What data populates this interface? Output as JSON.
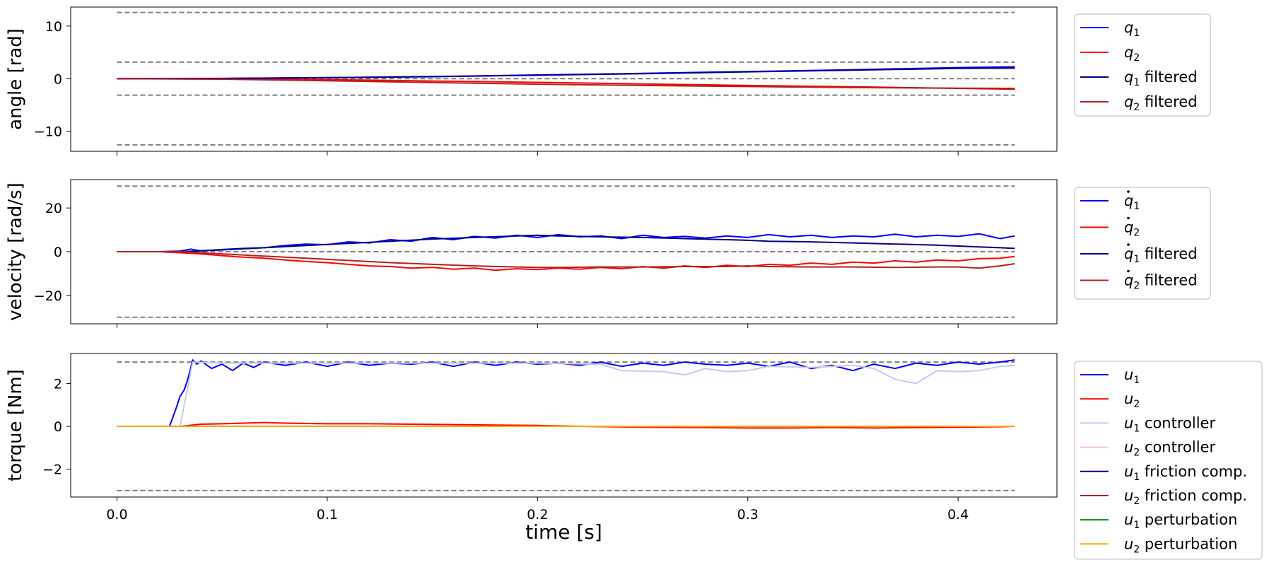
{
  "chart_data": [
    {
      "type": "line",
      "ylabel": "angle [rad]",
      "xlabel": "",
      "xlim": [
        -0.022,
        0.447
      ],
      "ylim": [
        -13.8,
        13.6
      ],
      "yticks": [
        10,
        0,
        -10
      ],
      "ytick_labels": [
        "10",
        "0",
        "−10"
      ],
      "xticks": [
        0.0,
        0.1,
        0.2,
        0.3,
        0.4
      ],
      "xtick_labels": [],
      "limits": [
        12.57,
        3.14,
        0,
        -3.14,
        -12.57
      ],
      "legend": "outside-right",
      "series": [
        {
          "name": "q",
          "sub": "1",
          "suffix": "",
          "dot": false,
          "color": "#0000ff",
          "width": 2,
          "x": [
            0,
            0.05,
            0.1,
            0.15,
            0.2,
            0.25,
            0.3,
            0.35,
            0.4,
            0.427
          ],
          "y": [
            0,
            0.05,
            0.2,
            0.4,
            0.7,
            1.0,
            1.35,
            1.7,
            2.1,
            2.25
          ]
        },
        {
          "name": "q",
          "sub": "2",
          "suffix": "",
          "dot": false,
          "color": "#ff0000",
          "width": 2,
          "x": [
            0,
            0.05,
            0.1,
            0.15,
            0.2,
            0.25,
            0.3,
            0.35,
            0.4,
            0.427
          ],
          "y": [
            0,
            -0.05,
            -0.2,
            -0.45,
            -0.7,
            -1.0,
            -1.3,
            -1.55,
            -1.85,
            -2.0
          ]
        },
        {
          "name": "q",
          "sub": "1",
          "suffix": " filtered",
          "dot": false,
          "color": "#00008b",
          "width": 2,
          "x": [
            0,
            0.05,
            0.1,
            0.15,
            0.2,
            0.25,
            0.3,
            0.35,
            0.4,
            0.427
          ],
          "y": [
            0,
            0.04,
            0.18,
            0.37,
            0.65,
            0.95,
            1.3,
            1.6,
            1.95,
            2.0
          ]
        },
        {
          "name": "q",
          "sub": "2",
          "suffix": " filtered",
          "dot": false,
          "color": "#b22222",
          "width": 2,
          "x": [
            0,
            0.05,
            0.1,
            0.15,
            0.2,
            0.25,
            0.3,
            0.35,
            0.4,
            0.427
          ],
          "y": [
            0,
            -0.1,
            -0.4,
            -0.75,
            -1.05,
            -1.3,
            -1.5,
            -1.7,
            -1.8,
            -1.85
          ]
        }
      ]
    },
    {
      "type": "line",
      "ylabel": "velocity [rad/s]",
      "xlabel": "",
      "xlim": [
        -0.022,
        0.447
      ],
      "ylim": [
        -33,
        33
      ],
      "yticks": [
        20,
        0,
        -20
      ],
      "ytick_labels": [
        "20",
        "0",
        "−20"
      ],
      "xticks": [
        0.0,
        0.1,
        0.2,
        0.3,
        0.4
      ],
      "xtick_labels": [],
      "limits": [
        30,
        0,
        -30
      ],
      "legend": "outside-right",
      "series": [
        {
          "name": "q",
          "sub": "1",
          "suffix": "",
          "dot": true,
          "color": "#0000ff",
          "width": 2,
          "x": [
            0,
            0.02,
            0.03,
            0.035,
            0.04,
            0.05,
            0.06,
            0.07,
            0.08,
            0.09,
            0.1,
            0.11,
            0.12,
            0.13,
            0.14,
            0.15,
            0.16,
            0.17,
            0.18,
            0.19,
            0.2,
            0.21,
            0.22,
            0.23,
            0.24,
            0.25,
            0.26,
            0.27,
            0.28,
            0.29,
            0.3,
            0.31,
            0.32,
            0.33,
            0.34,
            0.35,
            0.36,
            0.37,
            0.38,
            0.39,
            0.4,
            0.41,
            0.42,
            0.427
          ],
          "y": [
            0,
            0,
            0.3,
            1.2,
            0.4,
            1.0,
            1.5,
            1.8,
            2.8,
            3.5,
            3.2,
            4.5,
            4.0,
            5.5,
            4.8,
            6.5,
            5.5,
            7.0,
            6.2,
            7.5,
            6.5,
            7.8,
            6.8,
            7.2,
            6.0,
            7.5,
            6.5,
            7.0,
            6.2,
            7.2,
            6.5,
            7.8,
            6.8,
            7.5,
            6.5,
            7.2,
            6.8,
            8.0,
            6.8,
            7.5,
            7.0,
            8.2,
            6.0,
            7.2
          ]
        },
        {
          "name": "q",
          "sub": "2",
          "suffix": "",
          "dot": true,
          "color": "#ff0000",
          "width": 2,
          "x": [
            0,
            0.02,
            0.03,
            0.04,
            0.05,
            0.06,
            0.07,
            0.08,
            0.09,
            0.1,
            0.11,
            0.12,
            0.13,
            0.14,
            0.15,
            0.16,
            0.17,
            0.18,
            0.19,
            0.2,
            0.21,
            0.22,
            0.23,
            0.24,
            0.25,
            0.26,
            0.27,
            0.28,
            0.29,
            0.3,
            0.31,
            0.32,
            0.33,
            0.34,
            0.35,
            0.36,
            0.37,
            0.38,
            0.39,
            0.4,
            0.41,
            0.42,
            0.427
          ],
          "y": [
            0,
            0,
            -0.5,
            -1.0,
            -1.8,
            -2.5,
            -3.0,
            -3.8,
            -4.5,
            -5.0,
            -5.8,
            -6.5,
            -6.8,
            -7.5,
            -7.2,
            -8.0,
            -7.5,
            -8.5,
            -7.8,
            -8.2,
            -7.5,
            -8.0,
            -7.2,
            -7.8,
            -6.8,
            -7.5,
            -6.5,
            -7.2,
            -6.2,
            -6.8,
            -5.8,
            -6.2,
            -5.2,
            -5.8,
            -4.8,
            -5.2,
            -4.2,
            -4.8,
            -3.8,
            -4.2,
            -3.2,
            -3.0,
            -2.2
          ]
        },
        {
          "name": "q",
          "sub": "1",
          "suffix": " filtered",
          "dot": true,
          "color": "#00008b",
          "width": 2,
          "x": [
            0,
            0.03,
            0.05,
            0.07,
            0.09,
            0.11,
            0.13,
            0.15,
            0.17,
            0.19,
            0.2,
            0.21,
            0.23,
            0.25,
            0.27,
            0.29,
            0.3,
            0.31,
            0.33,
            0.35,
            0.37,
            0.39,
            0.4,
            0.41,
            0.42,
            0.427
          ],
          "y": [
            0,
            0,
            0.8,
            1.8,
            2.8,
            3.8,
            4.8,
            5.8,
            6.5,
            7.2,
            7.5,
            7.2,
            6.8,
            6.5,
            6.0,
            5.5,
            5.2,
            4.8,
            4.5,
            4.0,
            3.5,
            3.0,
            2.6,
            2.2,
            1.8,
            1.5
          ]
        },
        {
          "name": "q",
          "sub": "2",
          "suffix": " filtered",
          "dot": true,
          "color": "#b22222",
          "width": 2,
          "x": [
            0,
            0.03,
            0.05,
            0.07,
            0.09,
            0.11,
            0.13,
            0.15,
            0.17,
            0.19,
            0.2,
            0.21,
            0.23,
            0.25,
            0.27,
            0.29,
            0.3,
            0.31,
            0.33,
            0.35,
            0.37,
            0.39,
            0.4,
            0.41,
            0.42,
            0.427
          ],
          "y": [
            0,
            0,
            -1.0,
            -2.0,
            -3.0,
            -4.0,
            -5.0,
            -5.8,
            -6.5,
            -7.0,
            -7.2,
            -7.2,
            -7.0,
            -7.0,
            -6.8,
            -6.8,
            -6.5,
            -6.8,
            -7.0,
            -7.0,
            -7.2,
            -7.0,
            -7.0,
            -7.5,
            -6.5,
            -5.5
          ]
        }
      ]
    },
    {
      "type": "line",
      "ylabel": "torque [Nm]",
      "xlabel": "time [s]",
      "xlim": [
        -0.022,
        0.447
      ],
      "ylim": [
        -3.3,
        3.4
      ],
      "yticks": [
        2,
        0,
        -2
      ],
      "ytick_labels": [
        "2",
        "0",
        "−2"
      ],
      "xticks": [
        0.0,
        0.1,
        0.2,
        0.3,
        0.4
      ],
      "xtick_labels": [
        "0.0",
        "0.1",
        "0.2",
        "0.3",
        "0.4"
      ],
      "limits": [
        3,
        -3
      ],
      "legend": "outside-right",
      "series": [
        {
          "name": "u",
          "sub": "1",
          "suffix": "",
          "dot": false,
          "color": "#0000ff",
          "width": 2,
          "x": [
            0,
            0.025,
            0.028,
            0.03,
            0.032,
            0.034,
            0.036,
            0.038,
            0.04,
            0.045,
            0.05,
            0.055,
            0.06,
            0.065,
            0.07,
            0.08,
            0.09,
            0.1,
            0.11,
            0.12,
            0.13,
            0.14,
            0.15,
            0.16,
            0.17,
            0.18,
            0.19,
            0.2,
            0.21,
            0.22,
            0.23,
            0.24,
            0.25,
            0.26,
            0.27,
            0.28,
            0.29,
            0.3,
            0.31,
            0.32,
            0.33,
            0.34,
            0.35,
            0.36,
            0.37,
            0.38,
            0.39,
            0.4,
            0.41,
            0.42,
            0.427
          ],
          "y": [
            0,
            0,
            0.8,
            1.4,
            1.7,
            2.3,
            3.1,
            2.9,
            3.05,
            2.7,
            2.9,
            2.6,
            2.95,
            2.75,
            3.0,
            2.85,
            3.0,
            2.8,
            3.0,
            2.85,
            2.95,
            2.9,
            3.0,
            2.8,
            3.0,
            2.85,
            3.0,
            2.9,
            2.95,
            2.85,
            3.0,
            2.8,
            2.95,
            2.85,
            3.0,
            2.9,
            2.85,
            2.95,
            2.8,
            3.0,
            2.7,
            2.85,
            2.6,
            2.9,
            2.7,
            2.95,
            2.85,
            3.0,
            2.9,
            3.0,
            3.1
          ]
        },
        {
          "name": "u",
          "sub": "2",
          "suffix": "",
          "dot": false,
          "color": "#ff0000",
          "width": 2,
          "x": [
            0,
            0.03,
            0.04,
            0.05,
            0.06,
            0.07,
            0.08,
            0.1,
            0.12,
            0.14,
            0.16,
            0.18,
            0.2,
            0.22,
            0.24,
            0.26,
            0.28,
            0.3,
            0.32,
            0.34,
            0.36,
            0.38,
            0.4,
            0.42,
            0.427
          ],
          "y": [
            0,
            0,
            0.1,
            0.12,
            0.15,
            0.18,
            0.15,
            0.12,
            0.12,
            0.1,
            0.08,
            0.06,
            0.04,
            0,
            -0.03,
            -0.05,
            -0.06,
            -0.08,
            -0.08,
            -0.06,
            -0.08,
            -0.06,
            -0.04,
            -0.02,
            0
          ]
        },
        {
          "name": "u",
          "sub": "1",
          "suffix": " controller",
          "dot": false,
          "color": "#c8c8ee",
          "width": 2,
          "x": [
            0,
            0.03,
            0.036,
            0.05,
            0.1,
            0.15,
            0.2,
            0.23,
            0.24,
            0.26,
            0.27,
            0.28,
            0.29,
            0.3,
            0.31,
            0.33,
            0.35,
            0.36,
            0.37,
            0.38,
            0.39,
            0.4,
            0.41,
            0.42,
            0.427
          ],
          "y": [
            0,
            0,
            3.0,
            2.95,
            2.95,
            2.95,
            2.95,
            2.9,
            2.6,
            2.55,
            2.4,
            2.7,
            2.55,
            2.6,
            2.8,
            2.75,
            2.85,
            2.7,
            2.2,
            2.0,
            2.6,
            2.55,
            2.6,
            2.8,
            2.85
          ]
        },
        {
          "name": "u",
          "sub": "2",
          "suffix": " controller",
          "dot": false,
          "color": "#ffc0cb",
          "width": 2,
          "x": [
            0,
            0.1,
            0.2,
            0.3,
            0.4,
            0.427
          ],
          "y": [
            0,
            0.01,
            0,
            -0.01,
            0,
            0
          ]
        },
        {
          "name": "u",
          "sub": "1",
          "suffix": " friction comp.",
          "dot": false,
          "color": "#00008b",
          "width": 2,
          "x": [
            0,
            0.427
          ],
          "y": [
            0,
            0
          ]
        },
        {
          "name": "u",
          "sub": "2",
          "suffix": " friction comp.",
          "dot": false,
          "color": "#b22222",
          "width": 2,
          "x": [
            0,
            0.427
          ],
          "y": [
            0,
            0
          ]
        },
        {
          "name": "u",
          "sub": "1",
          "suffix": " perturbation",
          "dot": false,
          "color": "#008000",
          "width": 2,
          "x": [
            0,
            0.427
          ],
          "y": [
            0,
            0
          ]
        },
        {
          "name": "u",
          "sub": "2",
          "suffix": " perturbation",
          "dot": false,
          "color": "#ffa500",
          "width": 2,
          "x": [
            0,
            0.427
          ],
          "y": [
            0,
            0
          ]
        }
      ]
    }
  ]
}
